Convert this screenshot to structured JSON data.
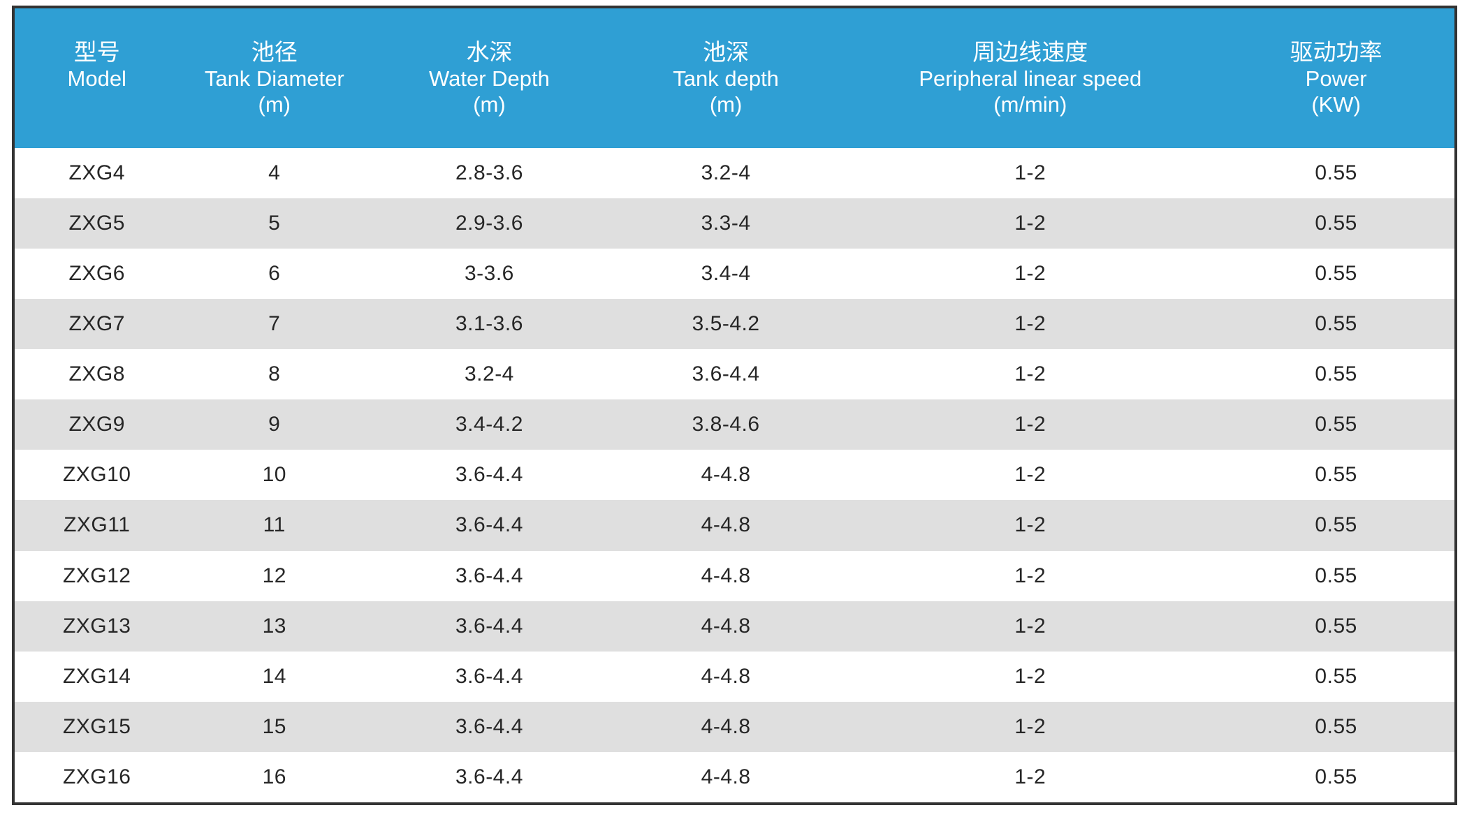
{
  "colors": {
    "header_bg": "#2f9fd4",
    "header_text": "#ffffff",
    "row_bg": "#ffffff",
    "row_alt_bg": "#dfdfdf",
    "body_text": "#262626",
    "border": "#333333"
  },
  "table": {
    "columns": [
      {
        "key": "model",
        "cn": "型号",
        "en": "Model",
        "unit": ""
      },
      {
        "key": "tank-diameter",
        "cn": "池径",
        "en": "Tank Diameter",
        "unit": "(m)"
      },
      {
        "key": "water-depth",
        "cn": "水深",
        "en": "Water Depth",
        "unit": "(m)"
      },
      {
        "key": "tank-depth",
        "cn": "池深",
        "en": "Tank depth",
        "unit": "(m)"
      },
      {
        "key": "peripheral-speed",
        "cn": "周边线速度",
        "en": "Peripheral linear speed",
        "unit": "(m/min)"
      },
      {
        "key": "power",
        "cn": "驱动功率",
        "en": "Power",
        "unit": "(KW)"
      }
    ],
    "rows": [
      {
        "cells": [
          "ZXG4",
          "4",
          "2.8-3.6",
          "3.2-4",
          "1-2",
          "0.55"
        ]
      },
      {
        "cells": [
          "ZXG5",
          "5",
          "2.9-3.6",
          "3.3-4",
          "1-2",
          "0.55"
        ]
      },
      {
        "cells": [
          "ZXG6",
          "6",
          "3-3.6",
          "3.4-4",
          "1-2",
          "0.55"
        ]
      },
      {
        "cells": [
          "ZXG7",
          "7",
          "3.1-3.6",
          "3.5-4.2",
          "1-2",
          "0.55"
        ]
      },
      {
        "cells": [
          "ZXG8",
          "8",
          "3.2-4",
          "3.6-4.4",
          "1-2",
          "0.55"
        ]
      },
      {
        "cells": [
          "ZXG9",
          "9",
          "3.4-4.2",
          "3.8-4.6",
          "1-2",
          "0.55"
        ]
      },
      {
        "cells": [
          "ZXG10",
          "10",
          "3.6-4.4",
          "4-4.8",
          "1-2",
          "0.55"
        ]
      },
      {
        "cells": [
          "ZXG11",
          "11",
          "3.6-4.4",
          "4-4.8",
          "1-2",
          "0.55"
        ]
      },
      {
        "cells": [
          "ZXG12",
          "12",
          "3.6-4.4",
          "4-4.8",
          "1-2",
          "0.55"
        ]
      },
      {
        "cells": [
          "ZXG13",
          "13",
          "3.6-4.4",
          "4-4.8",
          "1-2",
          "0.55"
        ]
      },
      {
        "cells": [
          "ZXG14",
          "14",
          "3.6-4.4",
          "4-4.8",
          "1-2",
          "0.55"
        ]
      },
      {
        "cells": [
          "ZXG15",
          "15",
          "3.6-4.4",
          "4-4.8",
          "1-2",
          "0.55"
        ]
      },
      {
        "cells": [
          "ZXG16",
          "16",
          "3.6-4.4",
          "4-4.8",
          "1-2",
          "0.55"
        ]
      }
    ]
  },
  "chart_data": {
    "type": "table",
    "title": "",
    "columns": [
      "型号 Model",
      "池径 Tank Diameter (m)",
      "水深 Water Depth (m)",
      "池深 Tank depth (m)",
      "周边线速度 Peripheral linear speed (m/min)",
      "驱动功率 Power (KW)"
    ],
    "rows": [
      [
        "ZXG4",
        "4",
        "2.8-3.6",
        "3.2-4",
        "1-2",
        "0.55"
      ],
      [
        "ZXG5",
        "5",
        "2.9-3.6",
        "3.3-4",
        "1-2",
        "0.55"
      ],
      [
        "ZXG6",
        "6",
        "3-3.6",
        "3.4-4",
        "1-2",
        "0.55"
      ],
      [
        "ZXG7",
        "7",
        "3.1-3.6",
        "3.5-4.2",
        "1-2",
        "0.55"
      ],
      [
        "ZXG8",
        "8",
        "3.2-4",
        "3.6-4.4",
        "1-2",
        "0.55"
      ],
      [
        "ZXG9",
        "9",
        "3.4-4.2",
        "3.8-4.6",
        "1-2",
        "0.55"
      ],
      [
        "ZXG10",
        "10",
        "3.6-4.4",
        "4-4.8",
        "1-2",
        "0.55"
      ],
      [
        "ZXG11",
        "11",
        "3.6-4.4",
        "4-4.8",
        "1-2",
        "0.55"
      ],
      [
        "ZXG12",
        "12",
        "3.6-4.4",
        "4-4.8",
        "1-2",
        "0.55"
      ],
      [
        "ZXG13",
        "13",
        "3.6-4.4",
        "4-4.8",
        "1-2",
        "0.55"
      ],
      [
        "ZXG14",
        "14",
        "3.6-4.4",
        "4-4.8",
        "1-2",
        "0.55"
      ],
      [
        "ZXG15",
        "15",
        "3.6-4.4",
        "4-4.8",
        "1-2",
        "0.55"
      ],
      [
        "ZXG16",
        "16",
        "3.6-4.4",
        "4-4.8",
        "1-2",
        "0.55"
      ]
    ],
    "layout": {
      "header_rows": 1,
      "row_striping": "even rows gray",
      "alignment": "center"
    }
  }
}
